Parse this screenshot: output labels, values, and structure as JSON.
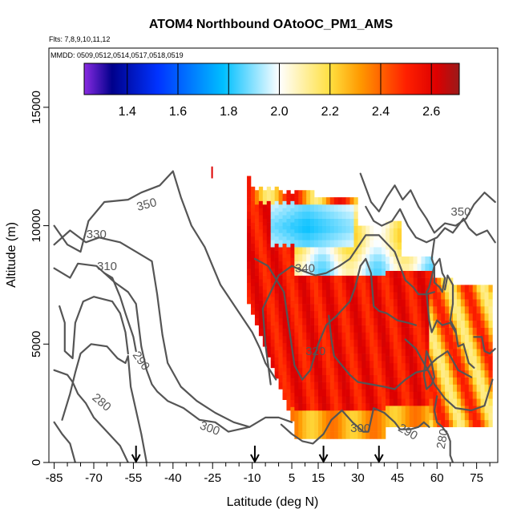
{
  "chart_data": {
    "type": "heatmap",
    "title": "ATOM4 Northbound OAtoOC_PM1_AMS",
    "flights_label": "Flts: 7,8,9,10,11,12",
    "dates_label": "MMDD: 0509,0512,0514,0517,0518,0519",
    "xlabel": "Latitude (deg N)",
    "ylabel": "Altitude (m)",
    "xlim": [
      -87,
      83
    ],
    "ylim": [
      0,
      17500
    ],
    "x_ticks": [
      -85,
      -70,
      -55,
      -40,
      -25,
      -10,
      5,
      15,
      30,
      45,
      60,
      75
    ],
    "y_ticks": [
      0,
      5000,
      10000,
      15000
    ],
    "colorbar": {
      "range": [
        1.23,
        2.71
      ],
      "ticks": [
        1.4,
        1.6,
        1.8,
        2.0,
        2.2,
        2.4,
        2.6
      ],
      "tick_labels": [
        "1.4",
        "1.6",
        "1.8",
        "2.0",
        "2.2",
        "2.4",
        "2.6"
      ],
      "gradient_stops": [
        {
          "v": 1.23,
          "color": "#8a2be2"
        },
        {
          "v": 1.34,
          "color": "#00008b"
        },
        {
          "v": 1.52,
          "color": "#0033ff"
        },
        {
          "v": 1.78,
          "color": "#00bfff"
        },
        {
          "v": 2.0,
          "color": "#ffffff"
        },
        {
          "v": 2.2,
          "color": "#ffe040"
        },
        {
          "v": 2.32,
          "color": "#ff9900"
        },
        {
          "v": 2.5,
          "color": "#ff2000"
        },
        {
          "v": 2.62,
          "color": "#dd0000"
        },
        {
          "v": 2.71,
          "color": "#9a1a1a"
        }
      ]
    },
    "contour_labels": [
      {
        "text": "350",
        "x": -50,
        "y": 10900,
        "angle": -15
      },
      {
        "text": "330",
        "x": -69,
        "y": 9650,
        "angle": 0
      },
      {
        "text": "310",
        "x": -65,
        "y": 8300,
        "angle": 0
      },
      {
        "text": "290",
        "x": -52,
        "y": 4300,
        "angle": 55
      },
      {
        "text": "280",
        "x": -67,
        "y": 2550,
        "angle": 40
      },
      {
        "text": "300",
        "x": -26,
        "y": 1450,
        "angle": 20
      },
      {
        "text": "340",
        "x": 10,
        "y": 8200,
        "angle": 0
      },
      {
        "text": "320",
        "x": 14,
        "y": 4700,
        "angle": 0
      },
      {
        "text": "300",
        "x": 31,
        "y": 1450,
        "angle": 0
      },
      {
        "text": "290",
        "x": 49,
        "y": 1300,
        "angle": 30
      },
      {
        "text": "280",
        "x": 62,
        "y": 1000,
        "angle": -80
      },
      {
        "text": "350",
        "x": 69,
        "y": 10600,
        "angle": 0
      }
    ],
    "flight_arrows_latitude": [
      -54,
      -9,
      17,
      38
    ],
    "contours": [
      [
        [
          -85,
          10000
        ],
        [
          -80,
          9200
        ],
        [
          -75,
          8900
        ],
        [
          -72,
          10200
        ],
        [
          -66,
          11000
        ],
        [
          -57,
          11100
        ],
        [
          -52,
          11400
        ],
        [
          -45,
          11700
        ],
        [
          -40,
          12300
        ],
        [
          -37,
          11200
        ],
        [
          -33,
          10000
        ],
        [
          -28,
          9100
        ],
        [
          -25,
          8300
        ],
        [
          -22,
          7500
        ],
        [
          -16,
          6500
        ],
        [
          -10,
          5500
        ],
        [
          -7,
          4800
        ],
        [
          -5,
          4200
        ],
        [
          -1,
          3500
        ]
      ],
      [
        [
          -85,
          9200
        ],
        [
          -79,
          9800
        ],
        [
          -73,
          9300
        ],
        [
          -68,
          9500
        ],
        [
          -60,
          9300
        ],
        [
          -54,
          8900
        ],
        [
          -48,
          8500
        ],
        [
          -46,
          7100
        ],
        [
          -44,
          5400
        ],
        [
          -42,
          4200
        ],
        [
          -37,
          3200
        ],
        [
          -31,
          2600
        ],
        [
          -24,
          2100
        ],
        [
          -17,
          1700
        ],
        [
          -11,
          1500
        ],
        [
          -5,
          1900
        ],
        [
          0,
          1900
        ],
        [
          5,
          1700
        ]
      ],
      [
        [
          -85,
          8200
        ],
        [
          -79,
          7800
        ],
        [
          -76,
          8400
        ],
        [
          -69,
          8300
        ],
        [
          -62,
          7600
        ],
        [
          -57,
          7200
        ],
        [
          -54,
          6700
        ],
        [
          -52,
          4900
        ],
        [
          -50,
          3900
        ],
        [
          -48,
          3300
        ],
        [
          -46,
          3000
        ],
        [
          -42,
          2600
        ],
        [
          -36,
          2300
        ],
        [
          -30,
          1800
        ],
        [
          -24,
          1700
        ],
        [
          -19,
          1300
        ],
        [
          -11,
          1500
        ]
      ],
      [
        [
          -83,
          6600
        ],
        [
          -81,
          5900
        ],
        [
          -81,
          4700
        ],
        [
          -78,
          4400
        ],
        [
          -77,
          5900
        ],
        [
          -74,
          6800
        ],
        [
          -70,
          7000
        ],
        [
          -63,
          6800
        ],
        [
          -60,
          6300
        ],
        [
          -58,
          5500
        ],
        [
          -57,
          4600
        ]
      ],
      [
        [
          -85,
          3900
        ],
        [
          -80,
          3700
        ],
        [
          -78,
          3400
        ],
        [
          -76,
          2900
        ],
        [
          -73,
          2500
        ],
        [
          -70,
          1900
        ],
        [
          -65,
          1300
        ],
        [
          -60,
          700
        ],
        [
          -57,
          0
        ]
      ],
      [
        [
          -82,
          1800
        ],
        [
          -79,
          2900
        ],
        [
          -77,
          3800
        ],
        [
          -75,
          4600
        ],
        [
          -71,
          5000
        ],
        [
          -65,
          4900
        ],
        [
          -61,
          4400
        ],
        [
          -58,
          4200
        ],
        [
          -57,
          4500
        ],
        [
          -56,
          3200
        ],
        [
          -52,
          1200
        ],
        [
          -50,
          0
        ]
      ],
      [
        [
          -85,
          1700
        ],
        [
          -82,
          1200
        ],
        [
          -79,
          800
        ],
        [
          -77,
          0
        ]
      ],
      [
        [
          -66,
          8000
        ],
        [
          -63,
          7800
        ],
        [
          -60,
          7000
        ],
        [
          -58,
          6300
        ],
        [
          -55,
          5300
        ],
        [
          -54,
          4700
        ]
      ],
      [
        [
          1,
          1600
        ],
        [
          5,
          1200
        ],
        [
          9,
          900
        ],
        [
          13,
          800
        ],
        [
          17,
          1200
        ],
        [
          20,
          1800
        ],
        [
          24,
          2200
        ],
        [
          28,
          1700
        ],
        [
          32,
          1300
        ],
        [
          34,
          1300
        ],
        [
          36,
          2300
        ],
        [
          40,
          2100
        ],
        [
          44,
          1700
        ],
        [
          46,
          1400
        ],
        [
          50,
          1400
        ],
        [
          53,
          1500
        ],
        [
          55,
          1700
        ],
        [
          57,
          1500
        ]
      ],
      [
        [
          -3,
          3300
        ],
        [
          -5,
          5000
        ],
        [
          -6,
          6500
        ],
        [
          0,
          7900
        ],
        [
          5,
          8300
        ],
        [
          9,
          8100
        ],
        [
          14,
          7900
        ],
        [
          18,
          8000
        ],
        [
          23,
          8300
        ],
        [
          27,
          8600
        ],
        [
          30,
          9100
        ],
        [
          33,
          9600
        ],
        [
          38,
          9600
        ],
        [
          44,
          8900
        ],
        [
          48,
          7700
        ],
        [
          51,
          7400
        ],
        [
          53,
          7100
        ],
        [
          56,
          7100
        ],
        [
          59,
          7200
        ]
      ],
      [
        [
          -9,
          8600
        ],
        [
          -4,
          8300
        ],
        [
          2,
          7200
        ],
        [
          6,
          4100
        ],
        [
          9,
          3500
        ],
        [
          12,
          3900
        ],
        [
          15,
          5000
        ],
        [
          18,
          5800
        ],
        [
          22,
          6200
        ],
        [
          27,
          6800
        ],
        [
          29,
          7400
        ],
        [
          31,
          8300
        ],
        [
          33,
          8600
        ],
        [
          35,
          8000
        ],
        [
          36,
          6600
        ],
        [
          38,
          6400
        ],
        [
          41,
          6300
        ],
        [
          45,
          6000
        ],
        [
          49,
          5900
        ],
        [
          52,
          5800
        ]
      ],
      [
        [
          19,
          6200
        ],
        [
          20,
          5200
        ],
        [
          21,
          4500
        ],
        [
          24,
          4100
        ],
        [
          27,
          3700
        ],
        [
          30,
          3400
        ],
        [
          35,
          3300
        ],
        [
          40,
          3200
        ],
        [
          44,
          3100
        ],
        [
          48,
          3500
        ],
        [
          52,
          3800
        ],
        [
          56,
          3900
        ],
        [
          58,
          4200
        ],
        [
          60,
          4400
        ],
        [
          64,
          4700
        ],
        [
          68,
          3900
        ],
        [
          73,
          3600
        ]
      ],
      [
        [
          48,
          5200
        ],
        [
          52,
          4800
        ],
        [
          54,
          4400
        ],
        [
          57,
          3800
        ],
        [
          59,
          3300
        ],
        [
          63,
          2700
        ],
        [
          67,
          2300
        ],
        [
          73,
          2200
        ],
        [
          78,
          2400
        ],
        [
          81,
          3500
        ]
      ],
      [
        [
          31,
          12200
        ],
        [
          35,
          11000
        ],
        [
          38,
          10600
        ],
        [
          41,
          11200
        ],
        [
          44,
          11700
        ],
        [
          47,
          11100
        ],
        [
          50,
          11500
        ],
        [
          53,
          10800
        ],
        [
          56,
          10300
        ],
        [
          59,
          9700
        ],
        [
          63,
          10100
        ],
        [
          67,
          10000
        ],
        [
          71,
          10300
        ],
        [
          74,
          10900
        ],
        [
          78,
          11400
        ],
        [
          82,
          11000
        ]
      ],
      [
        [
          33,
          10800
        ],
        [
          36,
          10200
        ],
        [
          39,
          10000
        ],
        [
          43,
          10200
        ],
        [
          46,
          10700
        ],
        [
          49,
          10000
        ],
        [
          52,
          9500
        ],
        [
          56,
          9300
        ],
        [
          60,
          9500
        ],
        [
          63,
          9900
        ],
        [
          66,
          9700
        ],
        [
          70,
          10300
        ],
        [
          72,
          9900
        ],
        [
          75,
          9600
        ],
        [
          79,
          9800
        ],
        [
          82,
          9300
        ]
      ],
      [
        [
          61,
          8600
        ],
        [
          62,
          8000
        ],
        [
          63,
          7800
        ],
        [
          62,
          7200
        ],
        [
          61,
          7400
        ],
        [
          59,
          7600
        ],
        [
          59,
          8300
        ],
        [
          61,
          8600
        ]
      ],
      [
        [
          59,
          9400
        ],
        [
          58,
          8600
        ],
        [
          59,
          8300
        ],
        [
          57,
          7400
        ],
        [
          56,
          7200
        ],
        [
          57,
          6000
        ],
        [
          58,
          5500
        ],
        [
          60,
          6000
        ],
        [
          62,
          5800
        ],
        [
          65,
          5900
        ],
        [
          67,
          5500
        ]
      ],
      [
        [
          63,
          7300
        ],
        [
          64,
          7900
        ],
        [
          66,
          7500
        ],
        [
          66,
          6700
        ],
        [
          65,
          6000
        ],
        [
          67,
          5600
        ],
        [
          68,
          4900
        ],
        [
          70,
          5000
        ],
        [
          72,
          4200
        ],
        [
          74,
          4000
        ]
      ],
      [
        [
          60,
          2800
        ],
        [
          59,
          2200
        ],
        [
          60,
          1700
        ],
        [
          62,
          1500
        ],
        [
          64,
          1200
        ],
        [
          65,
          900
        ],
        [
          65,
          300
        ],
        [
          66,
          0
        ]
      ],
      [
        [
          56,
          4700
        ],
        [
          58,
          4200
        ],
        [
          59,
          3600
        ],
        [
          58,
          3300
        ],
        [
          56,
          3100
        ],
        [
          55,
          3700
        ],
        [
          56,
          4700
        ]
      ],
      [
        [
          74,
          5300
        ],
        [
          77,
          5300
        ],
        [
          78,
          4700
        ],
        [
          80,
          4600
        ],
        [
          82,
          4800
        ]
      ]
    ]
  }
}
